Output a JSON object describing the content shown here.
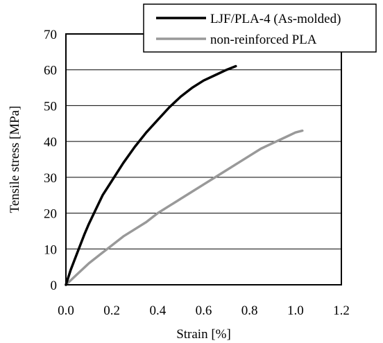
{
  "chart_data": {
    "type": "line",
    "title": "",
    "xlabel": "Strain [%]",
    "ylabel": "Tensile stress [MPa]",
    "xlim": [
      0,
      1.2
    ],
    "ylim": [
      0,
      70
    ],
    "xticks": [
      "0.0",
      "0.2",
      "0.4",
      "0.6",
      "0.8",
      "1.0",
      "1.2"
    ],
    "yticks": [
      "0",
      "10",
      "20",
      "30",
      "40",
      "50",
      "60",
      "70"
    ],
    "grid": "horizontal",
    "legend_position": "top-right",
    "series": [
      {
        "name": "LJF/PLA-4 (As-molded)",
        "color": "#000000",
        "x": [
          0.0,
          0.02,
          0.05,
          0.08,
          0.1,
          0.13,
          0.16,
          0.2,
          0.25,
          0.3,
          0.35,
          0.4,
          0.45,
          0.5,
          0.55,
          0.6,
          0.65,
          0.7,
          0.74
        ],
        "y": [
          0,
          4,
          9,
          14,
          17,
          21,
          25,
          29,
          34,
          38.5,
          42.5,
          46,
          49.5,
          52.5,
          55,
          57,
          58.5,
          60,
          61
        ]
      },
      {
        "name": "non-reinforced PLA",
        "color": "#999999",
        "x": [
          0.0,
          0.05,
          0.1,
          0.15,
          0.2,
          0.25,
          0.3,
          0.35,
          0.4,
          0.45,
          0.5,
          0.55,
          0.6,
          0.65,
          0.7,
          0.75,
          0.8,
          0.85,
          0.9,
          0.95,
          1.0,
          1.03
        ],
        "y": [
          0,
          3,
          6,
          8.5,
          11,
          13.5,
          15.5,
          17.5,
          20,
          22,
          24,
          26,
          28,
          30,
          32,
          34,
          36,
          38,
          39.5,
          41,
          42.5,
          43
        ]
      }
    ]
  }
}
